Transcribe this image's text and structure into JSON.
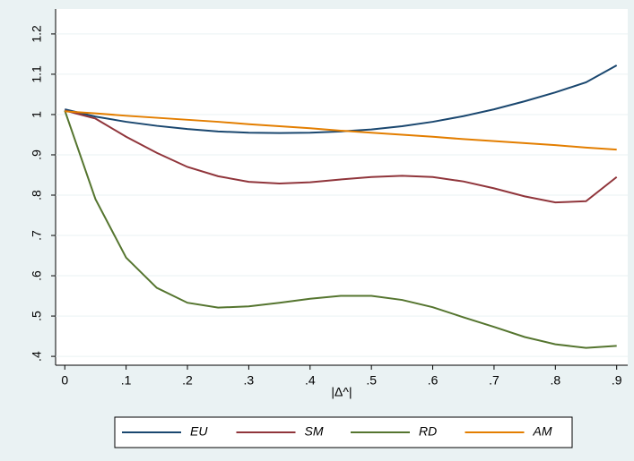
{
  "chart_data": {
    "type": "line",
    "x_label": "|Δ^|",
    "x": [
      0,
      0.05,
      0.1,
      0.15,
      0.2,
      0.25,
      0.3,
      0.35,
      0.4,
      0.45,
      0.5,
      0.55,
      0.6,
      0.65,
      0.7,
      0.75,
      0.8,
      0.85,
      0.9
    ],
    "series": [
      {
        "name": "EU",
        "color": "#1a476f",
        "values": [
          1.013,
          0.995,
          0.982,
          0.972,
          0.964,
          0.958,
          0.955,
          0.954,
          0.955,
          0.958,
          0.963,
          0.971,
          0.982,
          0.996,
          1.013,
          1.033,
          1.055,
          1.08,
          1.122
        ]
      },
      {
        "name": "SM",
        "color": "#90353b",
        "values": [
          1.01,
          0.99,
          0.945,
          0.905,
          0.87,
          0.847,
          0.833,
          0.829,
          0.832,
          0.839,
          0.845,
          0.848,
          0.845,
          0.834,
          0.817,
          0.797,
          0.782,
          0.785,
          0.845
        ]
      },
      {
        "name": "RD",
        "color": "#55752f",
        "values": [
          1.01,
          0.79,
          0.645,
          0.57,
          0.533,
          0.521,
          0.524,
          0.533,
          0.543,
          0.55,
          0.55,
          0.54,
          0.522,
          0.497,
          0.473,
          0.448,
          0.43,
          0.421,
          0.426
        ]
      },
      {
        "name": "AM",
        "color": "#e37e00",
        "values": [
          1.008,
          1.003,
          0.997,
          0.992,
          0.987,
          0.982,
          0.976,
          0.971,
          0.966,
          0.96,
          0.955,
          0.95,
          0.945,
          0.939,
          0.934,
          0.929,
          0.924,
          0.918,
          0.913
        ]
      }
    ],
    "xlim": [
      -0.015,
      0.918
    ],
    "xticks": [
      0,
      {
        "value": 0.1,
        "label": ".1"
      },
      {
        "value": 0.2,
        "label": ".2"
      },
      {
        "value": 0.3,
        "label": ".3"
      },
      {
        "value": 0.4,
        "label": ".4"
      },
      {
        "value": 0.5,
        "label": ".5"
      },
      {
        "value": 0.6,
        "label": ".6"
      },
      {
        "value": 0.7,
        "label": ".7"
      },
      {
        "value": 0.8,
        "label": ".8"
      },
      {
        "value": 0.9,
        "label": ".9"
      }
    ],
    "ylim": [
      0.378,
      1.262
    ],
    "yticks": [
      {
        "value": 0.4,
        "label": ".4"
      },
      {
        "value": 0.5,
        "label": ".5"
      },
      {
        "value": 0.6,
        "label": ".6"
      },
      {
        "value": 0.7,
        "label": ".7"
      },
      {
        "value": 0.8,
        "label": ".8"
      },
      {
        "value": 0.9,
        "label": ".9"
      },
      1,
      1.1,
      1.2
    ],
    "grid": true,
    "legend_position": "bottom"
  }
}
